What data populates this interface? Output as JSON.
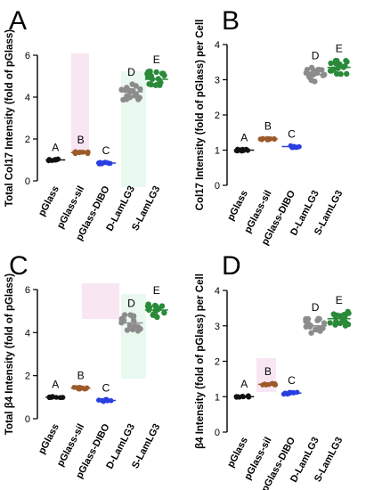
{
  "chart_data": [
    {
      "type": "scatter",
      "panel_label": "A",
      "title": "",
      "xlabel": "",
      "ylabel": "Total Col17 Intensity (fold of pGlass)",
      "ylim": [
        0,
        6
      ],
      "yticks": [
        0,
        2,
        4,
        6
      ],
      "categories": [
        "pGlass",
        "pGlass-sil",
        "pGlass-DIBO",
        "D-LamLG3",
        "S-LamLG3"
      ],
      "values": [
        1.0,
        1.35,
        0.85,
        4.25,
        4.85
      ],
      "group_letters": [
        "A",
        "B",
        "C",
        "D",
        "E"
      ],
      "grid": false,
      "legend": "none"
    },
    {
      "type": "scatter",
      "panel_label": "B",
      "title": "",
      "xlabel": "",
      "ylabel": "Col17 Intensity (fold of pGlass) per Cell",
      "ylim": [
        0,
        4
      ],
      "yticks": [
        0,
        1,
        2,
        3,
        4
      ],
      "categories": [
        "pGlass",
        "pGlass-sil",
        "pGlass-DIBO",
        "D-LamLG3",
        "S-LamLG3"
      ],
      "values": [
        1.0,
        1.32,
        1.1,
        3.15,
        3.35
      ],
      "group_letters": [
        "A",
        "B",
        "C",
        "D",
        "E"
      ],
      "grid": false,
      "legend": "none"
    },
    {
      "type": "scatter",
      "panel_label": "C",
      "title": "",
      "xlabel": "",
      "ylabel": "Total β4 Intensity (fold of pGlass)",
      "ylim": [
        0,
        6
      ],
      "yticks": [
        0,
        2,
        4,
        6
      ],
      "categories": [
        "pGlass",
        "pGlass-sil",
        "pGlass-DIBO",
        "D-LamLG3",
        "S-LamLG3"
      ],
      "values": [
        1.0,
        1.42,
        0.85,
        4.45,
        5.05
      ],
      "group_letters": [
        "A",
        "B",
        "C",
        "D",
        "E"
      ],
      "grid": false,
      "legend": "none"
    },
    {
      "type": "scatter",
      "panel_label": "D",
      "title": "",
      "xlabel": "",
      "ylabel": "β4 Intensity (fold of pGlass) per Cell",
      "ylim": [
        0,
        4
      ],
      "yticks": [
        0,
        1,
        2,
        3,
        4
      ],
      "categories": [
        "pGlass",
        "pGlass-sil",
        "pGlass-DIBO",
        "D-LamLG3",
        "S-LamLG3"
      ],
      "values": [
        1.0,
        1.35,
        1.1,
        3.0,
        3.2
      ],
      "group_letters": [
        "A",
        "B",
        "C",
        "D",
        "E"
      ],
      "grid": false,
      "legend": "none"
    }
  ],
  "colors": {
    "series": [
      "#111111",
      "#9c5a2a",
      "#2a3fe0",
      "#8c8c8c",
      "#2a8a3a"
    ],
    "highlight": [
      "#f4d2ea",
      "#d8f4e4"
    ],
    "axis": "#000000"
  }
}
